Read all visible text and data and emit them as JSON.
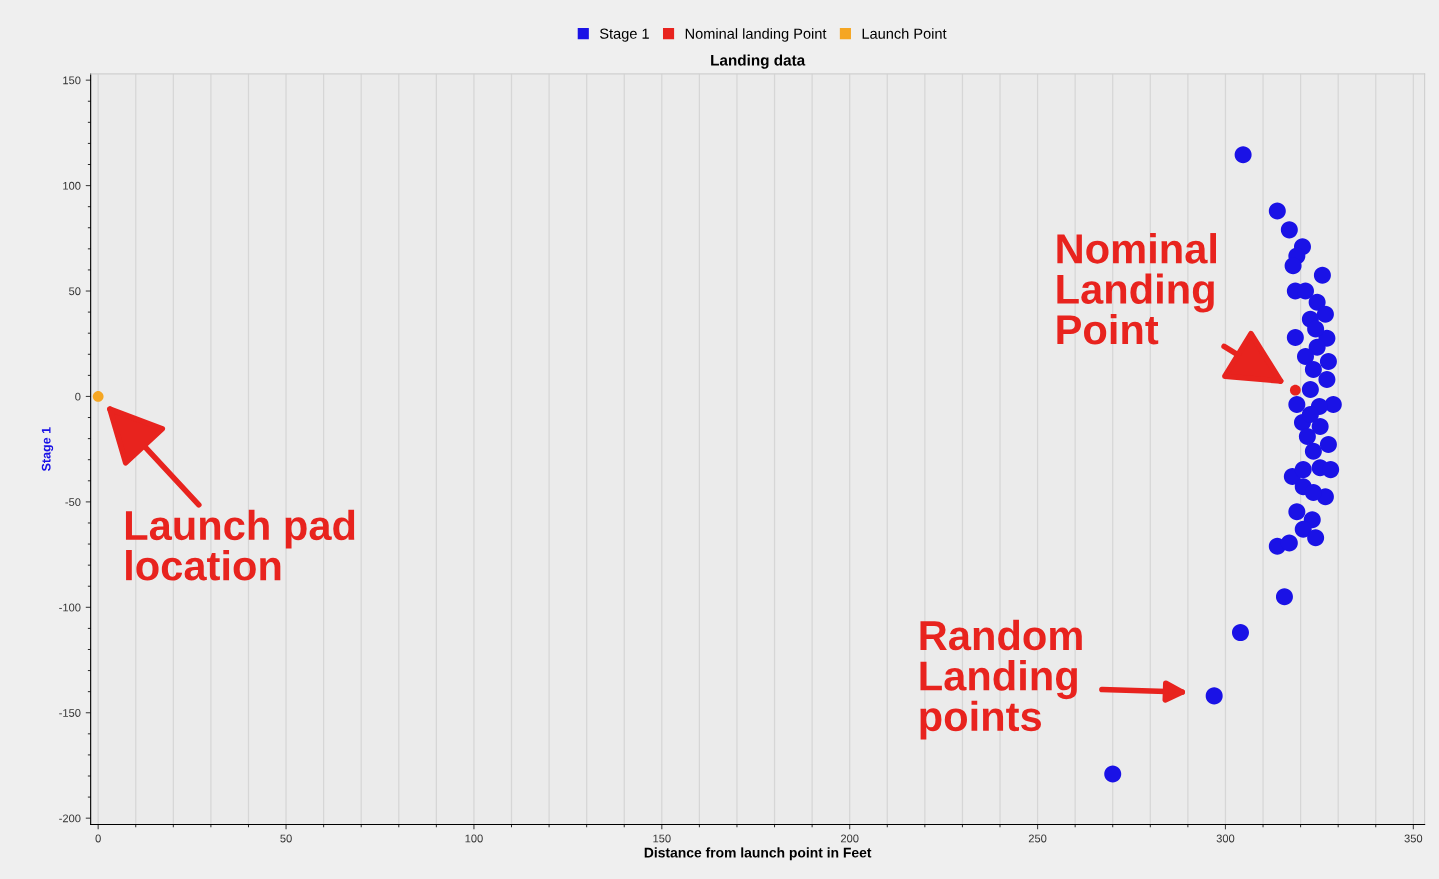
{
  "chart_data": {
    "type": "scatter",
    "title": "Landing data",
    "xlabel": "Distance from launch point in Feet",
    "ylabel": "Stage 1",
    "xlim": [
      -2,
      353
    ],
    "ylim": [
      -203,
      153
    ],
    "xticks": [
      0,
      50,
      100,
      150,
      200,
      250,
      300,
      350
    ],
    "yticks": [
      -200,
      -150,
      -100,
      -50,
      0,
      50,
      100,
      150
    ],
    "grid": "x",
    "legend": "top",
    "marker": "circle",
    "series": [
      {
        "name": "Stage 1",
        "color": "#1a12e6",
        "x": [
          304.7,
          313.8,
          317,
          297,
          270,
          304,
          315.7,
          313.8,
          317,
          320.5,
          319,
          318,
          325.8,
          318.6,
          321.3,
          324.4,
          326.6,
          322.6,
          318.6,
          327,
          324.4,
          321.3,
          327.4,
          323.4,
          327,
          322.6,
          328.7,
          325,
          320.5,
          325.2,
          321.8,
          327.4,
          323.4,
          325.2,
          317.8,
          320.7,
          326.6,
          323.4,
          319,
          323.1,
          320.7,
          324,
          324,
          320.7,
          328,
          319,
          322.6
        ],
        "values": [
          114.6,
          88,
          79,
          -142,
          -179,
          -112,
          -95,
          -71,
          -69.5,
          71,
          66.6,
          62,
          57.5,
          50,
          50,
          44.7,
          39,
          36.6,
          28,
          27.6,
          23.3,
          19,
          16.6,
          12.8,
          8,
          3.3,
          -3.8,
          -4.8,
          -12.4,
          -14.3,
          -19,
          -22.8,
          -26,
          -33.8,
          -38,
          -42.8,
          -47.6,
          -45.6,
          -54.7,
          -58.5,
          -63,
          -67,
          32,
          -34.7,
          -34.7,
          -3.8,
          -8.6
        ]
      },
      {
        "name": "Nominal landing Point",
        "color": "#e8231e",
        "x": [
          318.6
        ],
        "values": [
          3
        ]
      },
      {
        "name": "Launch Point",
        "color": "#f5a623",
        "x": [
          0
        ],
        "values": [
          0
        ]
      }
    ],
    "annotations": [
      {
        "text": "Nominal\nLanding\nPoint",
        "x": 318.6,
        "y": 3
      },
      {
        "text": "Launch pad\nlocation",
        "x": 0,
        "y": 0
      },
      "Random\nLanding\npoints"
    ]
  }
}
